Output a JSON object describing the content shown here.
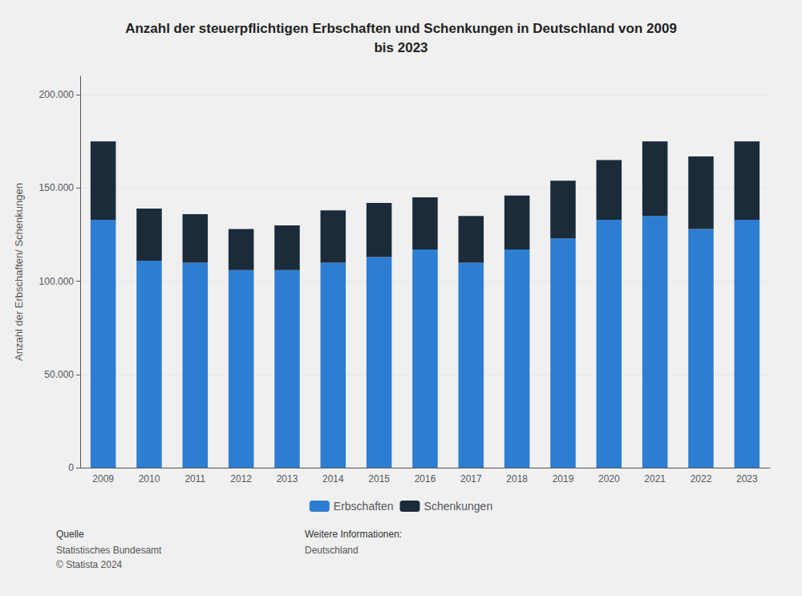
{
  "chart_data": {
    "type": "bar",
    "stacked": true,
    "title": "Anzahl der steuerpflichtigen Erbschaften und Schenkungen in Deutschland von 2009\nbis 2023",
    "ylabel": "Anzahl der Erbschaften/ Schenkungen",
    "categories": [
      "2009",
      "2010",
      "2011",
      "2012",
      "2013",
      "2014",
      "2015",
      "2016",
      "2017",
      "2018",
      "2019",
      "2020",
      "2021",
      "2022",
      "2023"
    ],
    "series": [
      {
        "name": "Erbschaften",
        "color": "#2d7dd2",
        "values": [
          133000,
          111000,
          110000,
          106000,
          106000,
          110000,
          113000,
          117000,
          110000,
          117000,
          123000,
          133000,
          135000,
          128000,
          133000
        ]
      },
      {
        "name": "Schenkungen",
        "color": "#1c2b3a",
        "values": [
          42000,
          28000,
          26000,
          22000,
          24000,
          28000,
          29000,
          28000,
          25000,
          29000,
          31000,
          32000,
          40000,
          39000,
          42000
        ]
      }
    ],
    "ylim": [
      0,
      210000
    ],
    "yticks": [
      0,
      {
        "value": 50000,
        "label": "50.000"
      },
      {
        "value": 100000,
        "label": "100.000"
      },
      {
        "value": 150000,
        "label": "150.000"
      },
      {
        "value": 200000,
        "label": "200.000"
      }
    ],
    "grid": true,
    "legend": "bottom",
    "annotations": [
      {
        "label": "Quelle",
        "lines": [
          "Statistisches Bundesamt",
          "© Statista 2024"
        ]
      },
      {
        "label": "Weitere Informationen:",
        "lines": [
          "Deutschland"
        ]
      }
    ]
  }
}
